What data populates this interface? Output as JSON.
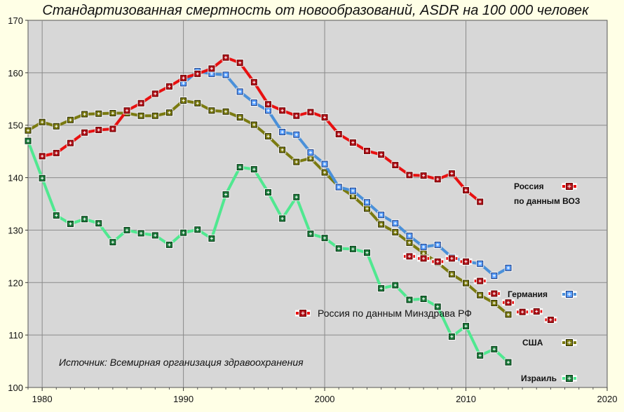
{
  "chart_data": {
    "type": "line",
    "title": "Стандартизованная смертность от новообразований, ASDR на 100 000 человек",
    "xlim": [
      1979,
      2020
    ],
    "ylim": [
      100,
      170
    ],
    "x_ticks": [
      1980,
      1990,
      2000,
      2010,
      2020
    ],
    "y_ticks": [
      100,
      110,
      120,
      130,
      140,
      150,
      160,
      170
    ],
    "grid": true,
    "source": "Источник: Всемирная организация здравоохранения",
    "series": [
      {
        "name": "Россия по данным ВОЗ",
        "legend_lines": [
          "Россия",
          "по данным ВОЗ"
        ],
        "color": "#e81010",
        "marker_fill": "#b01018",
        "marker_edge": "#6a0000",
        "x": [
          1980,
          1981,
          1982,
          1983,
          1984,
          1985,
          1986,
          1987,
          1988,
          1989,
          1990,
          1991,
          1992,
          1993,
          1994,
          1995,
          1996,
          1997,
          1998,
          1999,
          2000,
          2001,
          2002,
          2003,
          2004,
          2005,
          2006,
          2007,
          2008,
          2009,
          2010,
          2011
        ],
        "y": [
          144.1,
          144.7,
          146.6,
          148.6,
          149.1,
          149.3,
          152.8,
          154.2,
          156.0,
          157.4,
          159.0,
          159.8,
          160.8,
          162.9,
          161.9,
          158.2,
          154.0,
          152.8,
          151.8,
          152.5,
          151.5,
          148.3,
          146.7,
          145.1,
          144.4,
          142.4,
          140.5,
          140.4,
          139.7,
          140.8,
          137.6,
          135.4
        ]
      },
      {
        "name": "Германия",
        "color": "#4a90d9",
        "marker_fill": "#5aa0ff",
        "marker_edge": "#1a3a80",
        "x": [
          1990,
          1991,
          1992,
          1993,
          1994,
          1995,
          1996,
          1997,
          1998,
          1999,
          2000,
          2001,
          2002,
          2003,
          2004,
          2005,
          2006,
          2007,
          2008,
          2009,
          2010,
          2011,
          2012,
          2013
        ],
        "y": [
          158.0,
          160.3,
          159.8,
          159.6,
          156.4,
          154.3,
          152.8,
          148.7,
          148.2,
          144.8,
          142.6,
          138.2,
          137.5,
          135.3,
          132.9,
          131.3,
          128.9,
          126.8,
          127.2,
          124.8,
          124.0,
          123.6,
          121.3,
          122.8
        ]
      },
      {
        "name": "США",
        "color": "#7a7a10",
        "marker_fill": "#7a7a10",
        "marker_edge": "#2a2a00",
        "x": [
          1979,
          1980,
          1981,
          1982,
          1983,
          1984,
          1985,
          1986,
          1987,
          1988,
          1989,
          1990,
          1991,
          1992,
          1993,
          1994,
          1995,
          1996,
          1997,
          1998,
          1999,
          2000,
          2001,
          2002,
          2003,
          2004,
          2005,
          2006,
          2007,
          2008,
          2009,
          2010,
          2011,
          2012,
          2013
        ],
        "y": [
          149.0,
          150.6,
          149.8,
          151.0,
          152.1,
          152.2,
          152.3,
          152.3,
          151.8,
          151.8,
          152.4,
          154.7,
          154.2,
          152.8,
          152.6,
          151.5,
          150.1,
          147.9,
          145.3,
          143.0,
          143.7,
          141.0,
          138.3,
          136.5,
          134.1,
          131.1,
          129.6,
          127.6,
          125.6,
          123.8,
          121.6,
          119.9,
          117.6,
          116.1,
          113.9
        ]
      },
      {
        "name": "Израиль",
        "color": "#50e890",
        "marker_fill": "#1a7a3a",
        "marker_edge": "#0a3a18",
        "x": [
          1979,
          1980,
          1981,
          1982,
          1983,
          1984,
          1985,
          1986,
          1987,
          1988,
          1989,
          1990,
          1991,
          1992,
          1993,
          1994,
          1995,
          1996,
          1997,
          1998,
          1999,
          2000,
          2001,
          2002,
          2003,
          2004,
          2005,
          2006,
          2007,
          2008,
          2009,
          2010,
          2011,
          2012,
          2013
        ],
        "y": [
          147.0,
          139.9,
          132.8,
          131.2,
          132.1,
          131.3,
          127.7,
          130.0,
          129.4,
          129.0,
          127.2,
          129.5,
          130.1,
          128.4,
          136.8,
          142.0,
          141.6,
          137.2,
          132.2,
          136.3,
          129.3,
          128.5,
          126.5,
          126.4,
          125.7,
          118.9,
          119.5,
          116.7,
          116.9,
          115.4,
          109.7,
          111.7,
          106.1,
          107.3,
          104.8
        ]
      },
      {
        "name": "Россия по данным Минздрава РФ",
        "color": "#e81010",
        "marker_fill": "#b01018",
        "marker_edge": "#6a0000",
        "no_line": true,
        "x": [
          2006,
          2007,
          2008,
          2009,
          2010,
          2011,
          2012,
          2013,
          2014,
          2015,
          2016
        ],
        "y": [
          125.0,
          124.6,
          124.0,
          124.6,
          124.0,
          120.3,
          117.9,
          116.2,
          114.4,
          114.5,
          112.9
        ]
      }
    ]
  }
}
